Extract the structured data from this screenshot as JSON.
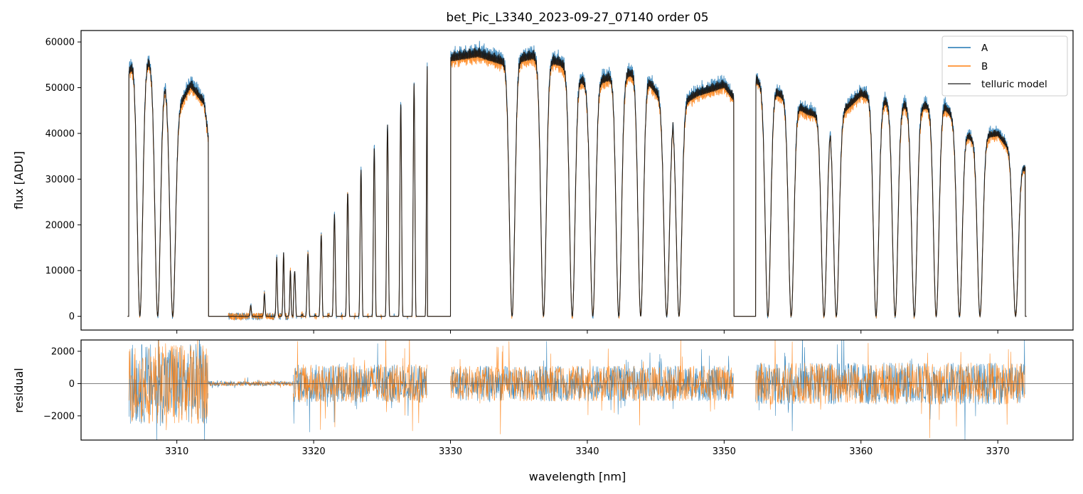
{
  "chart_data": [
    {
      "panel": "top",
      "type": "line",
      "title": "bet_Pic_L3340_2023-09-27_07140  order 05",
      "xlabel": "",
      "ylabel": "flux [ADU]",
      "xlim": [
        3303.0,
        3375.5
      ],
      "ylim": [
        -3000,
        62500
      ],
      "yticks": [
        0,
        10000,
        20000,
        30000,
        40000,
        50000,
        60000
      ],
      "ytick_labels": [
        "0",
        "10000",
        "20000",
        "30000",
        "40000",
        "50000",
        "60000"
      ],
      "grid": false,
      "legend": {
        "placement": "top-right",
        "entries": [
          "A",
          "B",
          "telluric model"
        ]
      },
      "series": [
        {
          "name": "A",
          "color": "#1f77b4"
        },
        {
          "name": "B",
          "color": "#ff7f0e"
        },
        {
          "name": "telluric model",
          "color": "#444444"
        }
      ],
      "continuum_segments": [
        {
          "x": [
            3306.5,
            3307,
            3308,
            3309,
            3310,
            3311,
            3312,
            3312.3
          ],
          "y": [
            55000,
            58000,
            57000,
            53000,
            46000,
            52000,
            48000,
            40000
          ]
        },
        {
          "x": [
            3330.0,
            3332,
            3334,
            3336,
            3338,
            3340,
            3342,
            3344,
            3346,
            3348,
            3350,
            3350.7
          ],
          "y": [
            58000,
            59000,
            57000,
            58500,
            57000,
            52000,
            54000,
            55000,
            46000,
            50000,
            52000,
            49000
          ]
        },
        {
          "x": [
            3352.3,
            3354,
            3356,
            3358,
            3360,
            3362,
            3364,
            3366,
            3368,
            3370,
            3372.0
          ],
          "y": [
            53000,
            50000,
            46000,
            44000,
            50000,
            48000,
            47000,
            47500,
            40000,
            41000,
            33000
          ]
        }
      ],
      "dense_region": {
        "x": [
          3318.5,
          3328.3
        ],
        "y_range": [
          0,
          54000
        ]
      },
      "absorption_lines": [
        3307.3,
        3308.6,
        3309.7,
        3313.0,
        3326.5,
        3334.5,
        3336.8,
        3338.9,
        3340.4,
        3342.3,
        3343.9,
        3345.8,
        3346.7,
        3353.2,
        3354.9,
        3357.3,
        3358.2,
        3361.1,
        3362.5,
        3363.9,
        3365.5,
        3367.2,
        3368.7,
        3371.3
      ]
    },
    {
      "panel": "bottom",
      "type": "line",
      "title": "",
      "xlabel": "wavelength [nm]",
      "ylabel": "residual",
      "xlim": [
        3303.0,
        3375.5
      ],
      "ylim": [
        -3500,
        2700
      ],
      "yticks": [
        -2000,
        0,
        2000
      ],
      "ytick_labels": [
        "−2000",
        "0",
        "2000"
      ],
      "xticks": [
        3310,
        3320,
        3330,
        3340,
        3350,
        3360,
        3370
      ],
      "xtick_labels": [
        "3310",
        "3320",
        "3330",
        "3340",
        "3350",
        "3360",
        "3370"
      ],
      "zero_line": true,
      "grid": false,
      "series": [
        {
          "name": "A",
          "color": "#1f77b4"
        },
        {
          "name": "B",
          "color": "#ff7f0e"
        }
      ],
      "noise_segments": [
        {
          "x": [
            3306.5,
            3312.3
          ],
          "amplitude": 2500
        },
        {
          "x": [
            3312.3,
            3318.5
          ],
          "amplitude": 150
        },
        {
          "x": [
            3318.5,
            3328.3
          ],
          "amplitude": 1200
        },
        {
          "x": [
            3330.0,
            3350.7
          ],
          "amplitude": 1100
        },
        {
          "x": [
            3352.3,
            3372.0
          ],
          "amplitude": 1300
        }
      ]
    }
  ]
}
